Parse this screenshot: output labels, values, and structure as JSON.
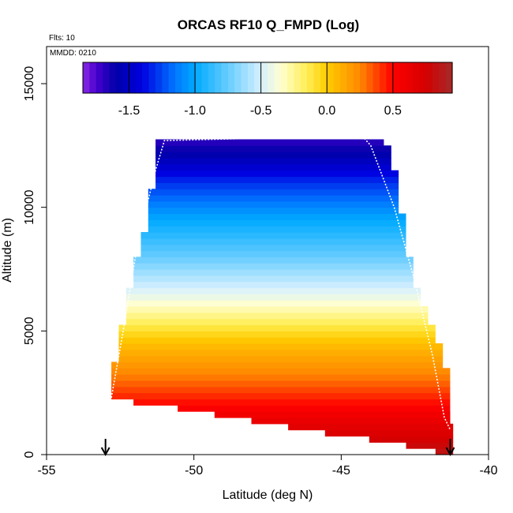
{
  "chart_data": {
    "type": "heatmap",
    "title": "ORCAS RF10 Q_FMPD (Log)",
    "xlabel": "Latitude (deg N)",
    "ylabel": "Altitude (m)",
    "xlim": [
      -55,
      -40
    ],
    "ylim": [
      0,
      16500
    ],
    "x_ticks": [
      -55,
      -50,
      -45,
      -40
    ],
    "y_ticks": [
      0,
      5000,
      10000,
      15000
    ],
    "annotations": {
      "flights": "Flts: 10",
      "date": "MMDD: 0210"
    },
    "colorbar": {
      "range": [
        -1.85,
        0.95
      ],
      "ticks": [
        -1.5,
        -1.0,
        -0.5,
        0.0,
        0.5
      ],
      "tick_labels": [
        "-1.5",
        "-1.0",
        "-0.5",
        "0.0",
        "0.5"
      ],
      "stops": [
        {
          "v": -1.85,
          "c": "#8a2be2"
        },
        {
          "v": -1.75,
          "c": "#4a00d0"
        },
        {
          "v": -1.6,
          "c": "#0000a8"
        },
        {
          "v": -1.4,
          "c": "#0000e0"
        },
        {
          "v": -1.15,
          "c": "#0077ff"
        },
        {
          "v": -1.0,
          "c": "#00aaff"
        },
        {
          "v": -0.75,
          "c": "#66ccff"
        },
        {
          "v": -0.5,
          "c": "#d6f0ff"
        },
        {
          "v": -0.35,
          "c": "#ffffd0"
        },
        {
          "v": -0.15,
          "c": "#ffee55"
        },
        {
          "v": 0.0,
          "c": "#ffcc00"
        },
        {
          "v": 0.25,
          "c": "#ff8800"
        },
        {
          "v": 0.5,
          "c": "#ff0000"
        },
        {
          "v": 0.75,
          "c": "#d40000"
        },
        {
          "v": 0.95,
          "c": "#a52a2a"
        }
      ]
    },
    "curtain": {
      "bin_size_m": 250,
      "bottom_edge": [
        [
          -52.8,
          2300
        ],
        [
          -51.6,
          2000
        ],
        [
          -50.3,
          1800
        ],
        [
          -49.0,
          1550
        ],
        [
          -47.7,
          1300
        ],
        [
          -46.5,
          1050
        ],
        [
          -45.2,
          800
        ],
        [
          -43.8,
          550
        ],
        [
          -42.6,
          300
        ],
        [
          -41.3,
          0
        ]
      ],
      "top_edge": [
        [
          -51.3,
          12700
        ],
        [
          -49.0,
          12750
        ],
        [
          -46.5,
          12800
        ],
        [
          -44.0,
          12850
        ],
        [
          -43.0,
          12700
        ]
      ],
      "left_edge": [
        [
          -52.8,
          3700
        ],
        [
          -52.5,
          5600
        ],
        [
          -52.2,
          7500
        ],
        [
          -51.9,
          8600
        ],
        [
          -51.6,
          10100
        ],
        [
          -51.5,
          11500
        ],
        [
          -51.3,
          12700
        ]
      ],
      "right_edge": [
        [
          -41.3,
          1300
        ],
        [
          -41.4,
          2900
        ],
        [
          -41.8,
          4600
        ],
        [
          -42.2,
          5600
        ],
        [
          -42.6,
          7000
        ],
        [
          -42.9,
          8600
        ],
        [
          -43.1,
          10000
        ],
        [
          -43.3,
          11600
        ],
        [
          -43.7,
          12900
        ]
      ],
      "value_profile": [
        {
          "alt": 0,
          "v": 0.85
        },
        {
          "alt": 1500,
          "v": 0.6
        },
        {
          "alt": 3000,
          "v": 0.3
        },
        {
          "alt": 4500,
          "v": 0.05
        },
        {
          "alt": 5500,
          "v": -0.2
        },
        {
          "alt": 6500,
          "v": -0.45
        },
        {
          "alt": 8000,
          "v": -0.75
        },
        {
          "alt": 9500,
          "v": -1.0
        },
        {
          "alt": 11000,
          "v": -1.3
        },
        {
          "alt": 12000,
          "v": -1.55
        },
        {
          "alt": 13000,
          "v": -1.75
        }
      ]
    },
    "flight_track": [
      [
        -52.8,
        2300
      ],
      [
        -52.4,
        5000
      ],
      [
        -51.9,
        8600
      ],
      [
        -51.3,
        11500
      ],
      [
        -51.0,
        12700
      ],
      [
        -44.3,
        12900
      ],
      [
        -44.0,
        12500
      ],
      [
        -43.2,
        10000
      ],
      [
        -42.5,
        7000
      ],
      [
        -41.9,
        4000
      ],
      [
        -41.5,
        1500
      ],
      [
        -41.3,
        1000
      ]
    ],
    "arrows": [
      {
        "x": -53.0,
        "label": "arrow-left"
      },
      {
        "x": -41.3,
        "label": "arrow-right"
      }
    ]
  }
}
